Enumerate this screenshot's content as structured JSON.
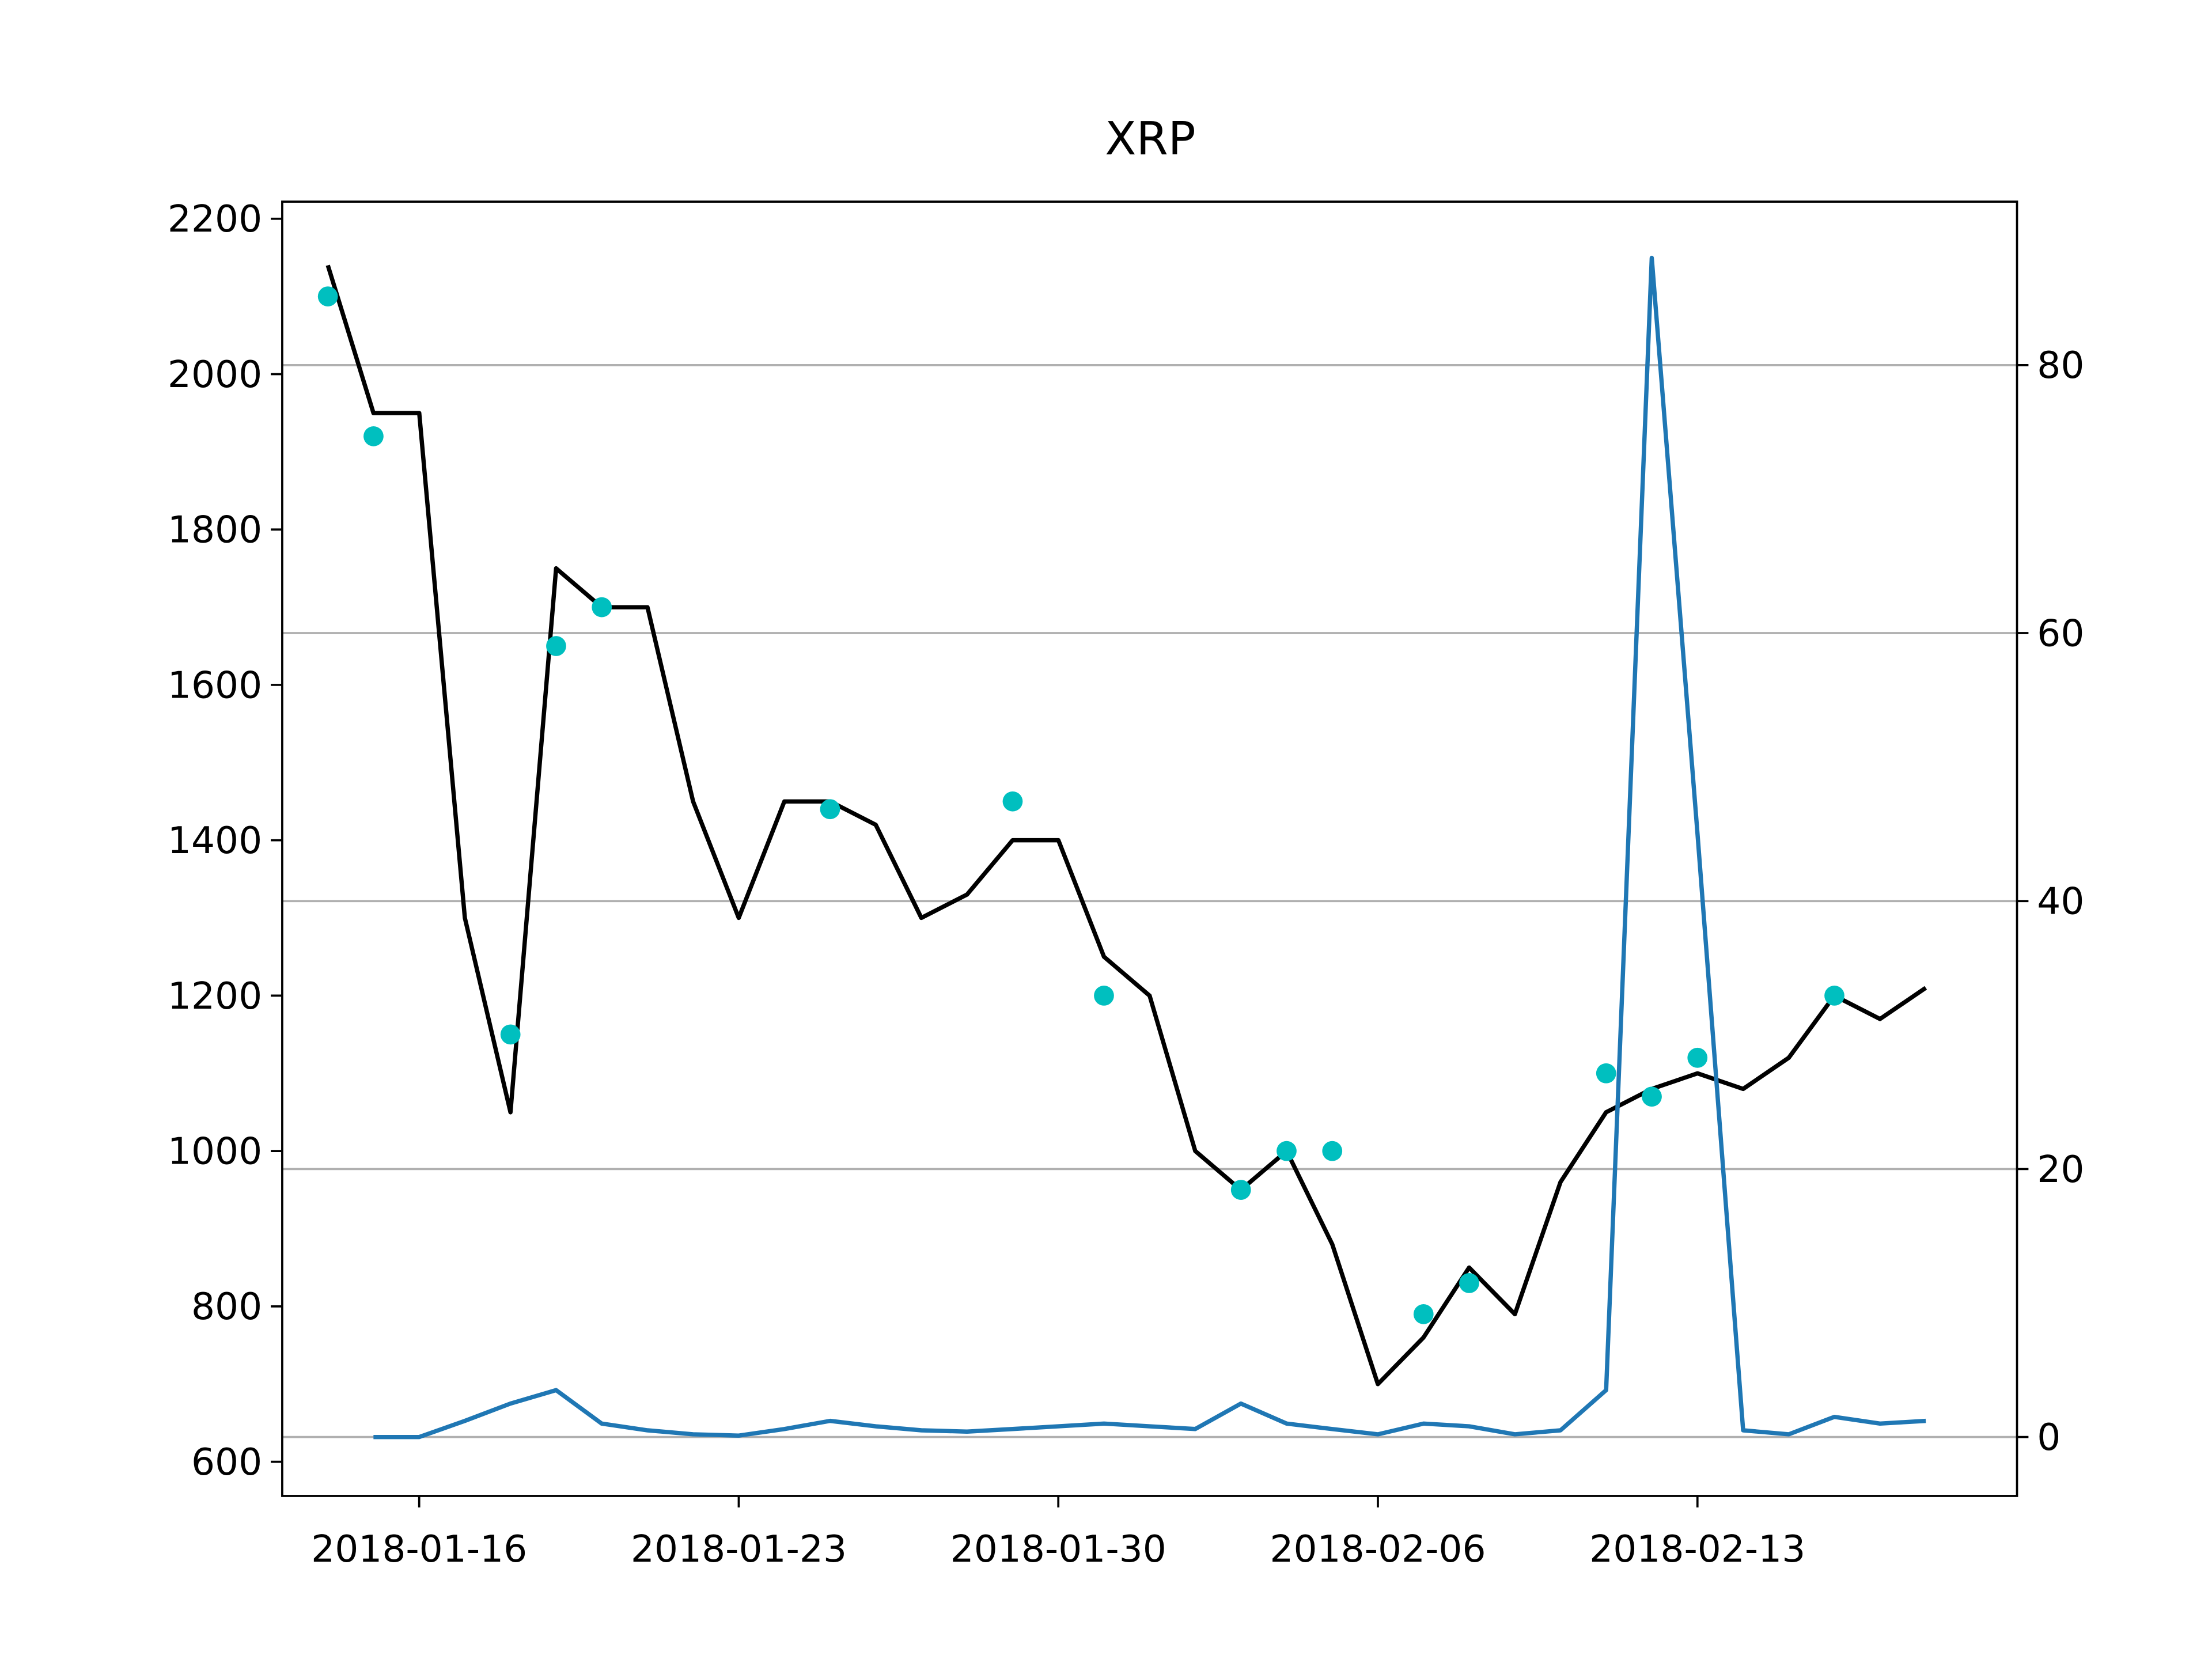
{
  "chart_data": {
    "type": "line",
    "title": "XRP",
    "x": [
      "2018-01-14",
      "2018-01-15",
      "2018-01-16",
      "2018-01-17",
      "2018-01-18",
      "2018-01-19",
      "2018-01-20",
      "2018-01-21",
      "2018-01-22",
      "2018-01-23",
      "2018-01-24",
      "2018-01-25",
      "2018-01-26",
      "2018-01-27",
      "2018-01-28",
      "2018-01-29",
      "2018-01-30",
      "2018-01-31",
      "2018-02-01",
      "2018-02-02",
      "2018-02-03",
      "2018-02-04",
      "2018-02-05",
      "2018-02-06",
      "2018-02-07",
      "2018-02-08",
      "2018-02-09",
      "2018-02-10",
      "2018-02-11",
      "2018-02-12",
      "2018-02-13",
      "2018-02-14",
      "2018-02-15",
      "2018-02-16",
      "2018-02-17",
      "2018-02-18"
    ],
    "series": [
      {
        "color": "#000000",
        "style": "line",
        "values": [
          2140,
          1950,
          1950,
          1300,
          1050,
          1750,
          1700,
          1700,
          1450,
          1300,
          1450,
          1450,
          1420,
          1300,
          1330,
          1400,
          1400,
          1250,
          1200,
          1000,
          950,
          1000,
          880,
          700,
          760,
          850,
          790,
          960,
          1050,
          1080,
          1100,
          1080,
          1120,
          1200,
          1170,
          1210
        ]
      },
      {
        "color": "#00bfbf",
        "style": "markers",
        "values": [
          2100,
          1920,
          null,
          null,
          1150,
          1650,
          1700,
          null,
          null,
          null,
          null,
          1440,
          null,
          null,
          null,
          1450,
          null,
          1200,
          null,
          null,
          950,
          1000,
          1000,
          null,
          790,
          830,
          null,
          null,
          1100,
          1070,
          1120,
          null,
          null,
          1200,
          null,
          null
        ]
      },
      {
        "color": "#1f77b4",
        "style": "line",
        "axis": "y2",
        "values": [
          null,
          0,
          0,
          1.2,
          2.5,
          3.5,
          1,
          0.5,
          0.2,
          0.1,
          0.6,
          1.2,
          0.8,
          0.5,
          0.4,
          0.6,
          0.8,
          1.0,
          0.8,
          0.6,
          2.5,
          1.0,
          0.6,
          0.2,
          1.0,
          0.8,
          0.2,
          0.5,
          3.5,
          88,
          45,
          0.5,
          0.2,
          1.5,
          1,
          1.2
        ]
      }
    ],
    "xlim": [
      "2018-01-13",
      "2018-02-20"
    ],
    "xticks": [
      "2018-01-16",
      "2018-01-23",
      "2018-01-30",
      "2018-02-06",
      "2018-02-13"
    ],
    "ylim": [
      556,
      2222
    ],
    "yticks": [
      600,
      800,
      1000,
      1200,
      1400,
      1600,
      1800,
      2000,
      2200
    ],
    "y2lim": [
      -4.4,
      92.2
    ],
    "y2ticks": [
      0,
      20,
      40,
      60,
      80
    ],
    "grid": "y2"
  }
}
